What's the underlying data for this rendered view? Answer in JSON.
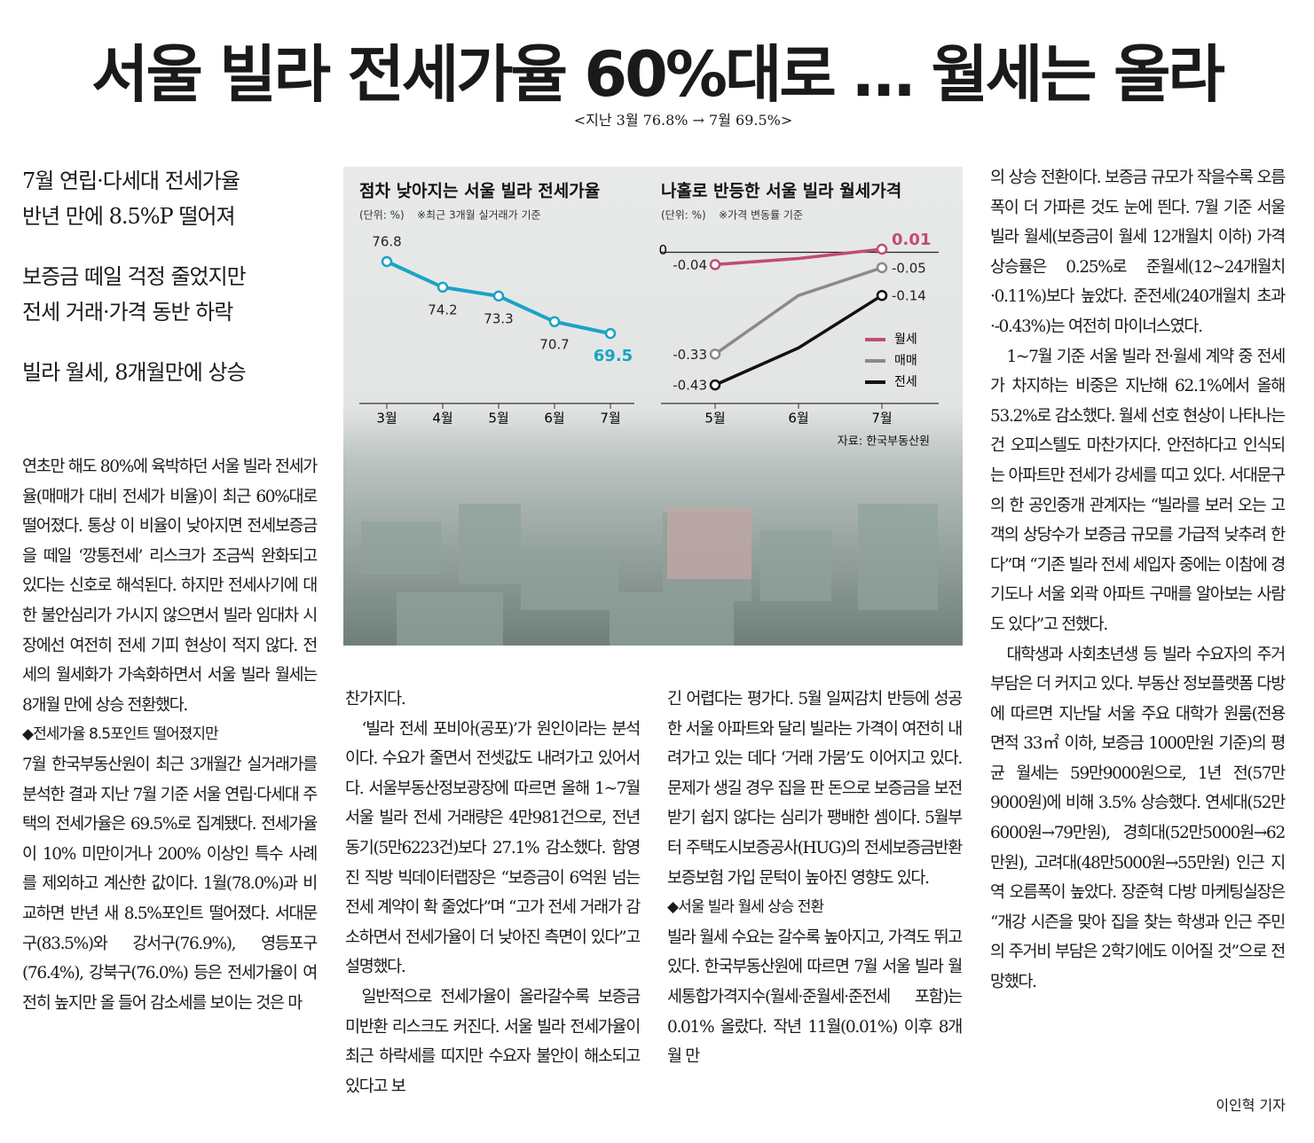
{
  "headline": "서울 빌라 전세가율 60%대로 … 월세는 올라",
  "subhead": "<지난 3월 76.8% → 7월 69.5%>",
  "summary": [
    [
      "7월 연립·다세대 전세가율",
      "반년 만에 8.5%P 떨어져"
    ],
    [
      "보증금 떼일 걱정 줄었지만",
      "전세 거래·가격 동반 하락"
    ],
    [
      "빌라 월세, 8개월만에 상승"
    ]
  ],
  "columns": [
    [
      "연초만 해도 80%에 육박하던 서울 빌라 전세가율(매매가 대비 전세가 비율)이 최근 60%대로 떨어졌다. 통상 이 비율이 낮아지면 전세보증금을 떼일 ‘깡통전세’ 리스크가 조금씩 완화되고 있다는 신호로 해석된다. 하지만 전세사기에 대한 불안심리가 가시지 않으면서 빌라 임대차 시장에선 여전히 전세 기피 현상이 적지 않다. 전세의 월세화가 가속화하면서 서울 빌라 월세는 8개월 만에 상승 전환했다.",
      "◆전세가율 8.5포인트 떨어졌지만",
      "7월 한국부동산원이 최근 3개월간 실거래가를 분석한 결과 지난 7월 기준 서울 연립·다세대 주택의 전세가율은 69.5%로 집계됐다. 전세가율이 10% 미만이거나 200% 이상인 특수 사례를 제외하고 계산한 값이다. 1월(78.0%)과 비교하면 반년 새 8.5%포인트 떨어졌다. 서대문구(83.5%)와 강서구(76.9%), 영등포구(76.4%), 강북구(76.0%) 등은 전세가율이 여전히 높지만 올 들어 감소세를 보이는 것은 마"
    ],
    [
      "찬가지다.",
      "‘빌라 전세 포비아(공포)’가 원인이라는 분석이다. 수요가 줄면서 전셋값도 내려가고 있어서다. 서울부동산정보광장에 따르면 올해 1~7월 서울 빌라 전세 거래량은 4만981건으로, 전년 동기(5만6223건)보다 27.1% 감소했다. 함영진 직방 빅데이터랩장은 “보증금이 6억원 넘는 전세 계약이 확 줄었다”며 “고가 전세 거래가 감소하면서 전세가율이 더 낮아진 측면이 있다”고 설명했다.",
      "일반적으로 전세가율이 올라갈수록 보증금 미반환 리스크도 커진다. 서울 빌라 전세가율이 최근 하락세를 띠지만 수요자 불안이 해소되고 있다고 보"
    ],
    [
      "긴 어렵다는 평가다. 5월 일찌감치 반등에 성공한 서울 아파트와 달리 빌라는 가격이 여전히 내려가고 있는 데다 ‘거래 가뭄’도 이어지고 있다. 문제가 생길 경우 집을 판 돈으로 보증금을 보전받기 쉽지 않다는 심리가 팽배한 셈이다. 5월부터 주택도시보증공사(HUG)의 전세보증금반환보증보험 가입 문턱이 높아진 영향도 있다.",
      "◆서울 빌라 월세 상승 전환",
      "빌라 월세 수요는 갈수록 높아지고, 가격도 뛰고 있다. 한국부동산원에 따르면 7월 서울 빌라 월세통합가격지수(월세·준월세·준전세 포함)는 0.01% 올랐다. 작년 11월(0.01%) 이후 8개월 만"
    ],
    [
      "의 상승 전환이다. 보증금 규모가 작을수록 오름폭이 더 가파른 것도 눈에 띈다. 7월 기준 서울 빌라 월세(보증금이 월세 12개월치 이하) 가격 상승률은 0.25%로 준월세(12~24개월치·0.11%)보다 높았다. 준전세(240개월치 초과·-0.43%)는 여전히 마이너스였다.",
      "1~7월 기준 서울 빌라 전·월세 계약 중 전세가 차지하는 비중은 지난해 62.1%에서 올해 53.2%로 감소했다. 월세 선호 현상이 나타나는 건 오피스텔도 마찬가지다. 안전하다고 인식되는 아파트만 전세가 강세를 띠고 있다. 서대문구의 한 공인중개 관계자는 “빌라를 보러 오는 고객의 상당수가 보증금 규모를 가급적 낮추려 한다”며 “기존 빌라 전세 세입자 중에는 이참에 경기도나 서울 외곽 아파트 구매를 알아보는 사람도 있다”고 전했다.",
      "대학생과 사회초년생 등 빌라 수요자의 주거 부담은 더 커지고 있다. 부동산 정보플랫폼 다방에 따르면 지난달 서울 주요 대학가 원룸(전용면적 33㎡ 이하, 보증금 1000만원 기준)의 평균 월세는 59만9000원으로, 1년 전(57만9000원)에 비해 3.5% 상승했다. 연세대(52만6000원→79만원), 경희대(52만5000원→62만원), 고려대(48만5000원→55만원) 인근 지역 오름폭이 높았다. 장준혁 다방 마케팅실장은 “개강 시즌을 맞아 집을 찾는 학생과 인근 주민의 주거비 부담은 2학기에도 이어질 것”으로 전망했다."
    ]
  ],
  "byline": "이인혁 기자",
  "chart_data": [
    {
      "type": "line",
      "title": "점차 낮아지는 서울 빌라 전세가율",
      "unit": "(단위: %)",
      "note": "※최근 3개월 실거래가 기준",
      "categories": [
        "3월",
        "4월",
        "5월",
        "6월",
        "7월"
      ],
      "values": [
        76.8,
        74.2,
        73.3,
        70.7,
        69.5
      ],
      "color": "#1ba3c6",
      "ylim": [
        62.4,
        79.5
      ]
    },
    {
      "type": "line",
      "title": "나홀로 반등한 서울 빌라 월세가격",
      "unit": "(단위: %)",
      "note": "※가격 변동률 기준",
      "categories": [
        "5월",
        "6월",
        "7월"
      ],
      "series": [
        {
          "name": "월세",
          "color": "#c44a7a",
          "values": [
            -0.04,
            -0.02,
            0.01
          ],
          "value_labels": [
            "-0.04",
            null,
            "0.01"
          ]
        },
        {
          "name": "매매",
          "color": "#8a8a8a",
          "values": [
            -0.33,
            -0.14,
            -0.05
          ],
          "value_labels": [
            "-0.33",
            null,
            "-0.05"
          ]
        },
        {
          "name": "전세",
          "color": "#111111",
          "values": [
            -0.43,
            -0.31,
            -0.14
          ],
          "value_labels": [
            "-0.43",
            null,
            "-0.14"
          ]
        }
      ],
      "ylim": [
        -0.49,
        0.056
      ],
      "yticks": [
        0
      ],
      "source": "자료: 한국부동산원"
    }
  ]
}
